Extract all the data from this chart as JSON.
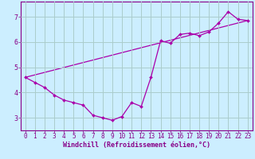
{
  "xlabel": "Windchill (Refroidissement éolien,°C)",
  "bg_color": "#cceeff",
  "grid_color": "#aacccc",
  "line_color": "#aa00aa",
  "xlim": [
    -0.5,
    23.5
  ],
  "ylim": [
    2.5,
    7.6
  ],
  "yticks": [
    3,
    4,
    5,
    6,
    7
  ],
  "xticks": [
    0,
    1,
    2,
    3,
    4,
    5,
    6,
    7,
    8,
    9,
    10,
    11,
    12,
    13,
    14,
    15,
    16,
    17,
    18,
    19,
    20,
    21,
    22,
    23
  ],
  "line1_x": [
    0,
    1,
    2,
    3,
    4,
    5,
    6,
    7,
    8,
    9,
    10,
    11,
    12,
    13,
    14,
    15,
    16,
    17,
    18,
    19,
    20,
    21,
    22,
    23
  ],
  "line1_y": [
    4.6,
    4.4,
    4.2,
    3.9,
    3.7,
    3.6,
    3.5,
    3.1,
    3.0,
    2.9,
    3.05,
    3.6,
    3.45,
    4.6,
    6.05,
    5.95,
    6.3,
    6.35,
    6.25,
    6.4,
    6.75,
    7.2,
    6.9,
    6.85
  ],
  "line2_x": [
    0,
    23
  ],
  "line2_y": [
    4.6,
    6.85
  ],
  "xlabel_fontsize": 6.0,
  "tick_fontsize": 5.5
}
